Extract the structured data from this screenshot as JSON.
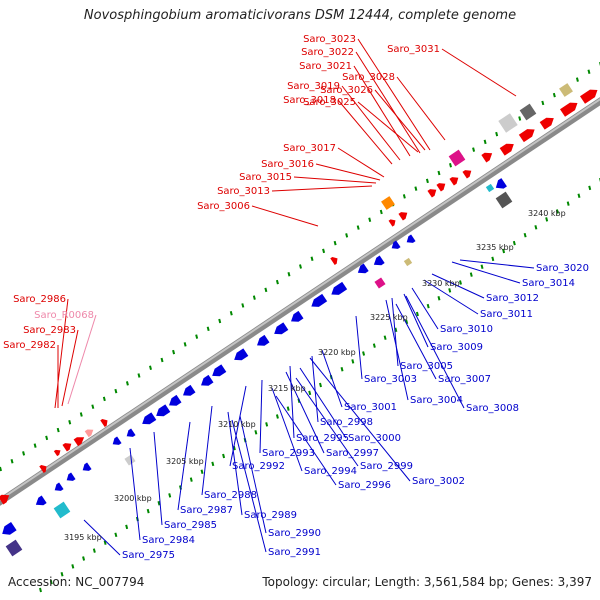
{
  "title": "Novosphingobium aromaticivorans DSM 12444, complete genome",
  "footer": {
    "accession": "Accession: NC_007794",
    "summary": "Topology: circular; Length: 3,561,584 bp; Genes: 3,397"
  },
  "colors": {
    "forward_gene": "#ee0000",
    "reverse_gene": "#0000dd",
    "rna_gene": "#ff9999",
    "backbone": "#999999",
    "tick_green": "#008800",
    "label_red": "#dd0000",
    "label_blue": "#0000cc",
    "label_pink": "#ee88aa"
  },
  "scale_labels": [
    "3195 kbp",
    "3200 kbp",
    "3205 kbp",
    "3210 kbp",
    "3215 kbp",
    "3220 kbp",
    "3225 kbp",
    "3230 kbp",
    "3235 kbp",
    "3240 kbp"
  ],
  "forward_labels": [
    "Saro_3023",
    "Saro_3022",
    "Saro_3021",
    "Saro_3019",
    "Saro_3018",
    "Saro_3025",
    "Saro_3026",
    "Saro_3028",
    "Saro_3031",
    "Saro_3017",
    "Saro_3016",
    "Saro_3015",
    "Saro_3013",
    "Saro_3006",
    "Saro_2986",
    "Saro_R0068",
    "Saro_2983",
    "Saro_2982"
  ],
  "reverse_labels": [
    "Saro_3020",
    "Saro_3014",
    "Saro_3012",
    "Saro_3011",
    "Saro_3010",
    "Saro_3009",
    "Saro_3005",
    "Saro_3007",
    "Saro_3004",
    "Saro_3008",
    "Saro_3003",
    "Saro_3001",
    "Saro_2998",
    "Saro_2995",
    "Saro_3000",
    "Saro_2997",
    "Saro_2993",
    "Saro_2999",
    "Saro_2992",
    "Saro_2994",
    "Saro_2996",
    "Saro_3002",
    "Saro_2988",
    "Saro_2987",
    "Saro_2989",
    "Saro_2985",
    "Saro_2984",
    "Saro_2990",
    "Saro_2975",
    "Saro_2991"
  ]
}
